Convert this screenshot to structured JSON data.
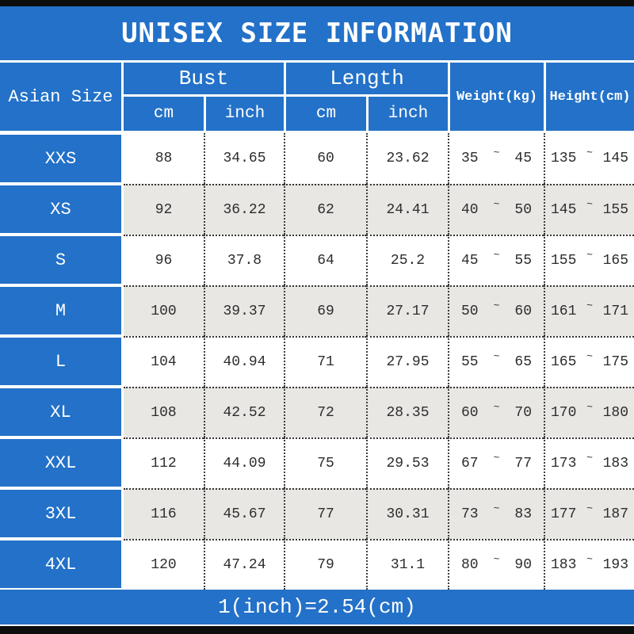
{
  "title": "UNISEX SIZE INFORMATION",
  "header": {
    "size_column": "Asian Size",
    "bust": "Bust",
    "length": "Length",
    "cm": "cm",
    "inch": "inch",
    "weight": "Weight(kg)",
    "height": "Height(cm)",
    "tilde": "~"
  },
  "rows": [
    {
      "size": "XXS",
      "bust_cm": "88",
      "bust_inch": "34.65",
      "length_cm": "60",
      "length_inch": "23.62",
      "weight_min": "35",
      "weight_max": "45",
      "height_min": "135",
      "height_max": "145"
    },
    {
      "size": "XS",
      "bust_cm": "92",
      "bust_inch": "36.22",
      "length_cm": "62",
      "length_inch": "24.41",
      "weight_min": "40",
      "weight_max": "50",
      "height_min": "145",
      "height_max": "155"
    },
    {
      "size": "S",
      "bust_cm": "96",
      "bust_inch": "37.8",
      "length_cm": "64",
      "length_inch": "25.2",
      "weight_min": "45",
      "weight_max": "55",
      "height_min": "155",
      "height_max": "165"
    },
    {
      "size": "M",
      "bust_cm": "100",
      "bust_inch": "39.37",
      "length_cm": "69",
      "length_inch": "27.17",
      "weight_min": "50",
      "weight_max": "60",
      "height_min": "161",
      "height_max": "171"
    },
    {
      "size": "L",
      "bust_cm": "104",
      "bust_inch": "40.94",
      "length_cm": "71",
      "length_inch": "27.95",
      "weight_min": "55",
      "weight_max": "65",
      "height_min": "165",
      "height_max": "175"
    },
    {
      "size": "XL",
      "bust_cm": "108",
      "bust_inch": "42.52",
      "length_cm": "72",
      "length_inch": "28.35",
      "weight_min": "60",
      "weight_max": "70",
      "height_min": "170",
      "height_max": "180"
    },
    {
      "size": "XXL",
      "bust_cm": "112",
      "bust_inch": "44.09",
      "length_cm": "75",
      "length_inch": "29.53",
      "weight_min": "67",
      "weight_max": "77",
      "height_min": "173",
      "height_max": "183"
    },
    {
      "size": "3XL",
      "bust_cm": "116",
      "bust_inch": "45.67",
      "length_cm": "77",
      "length_inch": "30.31",
      "weight_min": "73",
      "weight_max": "83",
      "height_min": "177",
      "height_max": "187"
    },
    {
      "size": "4XL",
      "bust_cm": "120",
      "bust_inch": "47.24",
      "length_cm": "79",
      "length_inch": "31.1",
      "weight_min": "80",
      "weight_max": "90",
      "height_min": "183",
      "height_max": "193"
    }
  ],
  "footer": {
    "note": "1(inch)=2.54(cm)"
  },
  "colors": {
    "blue": "#2371C8",
    "alt_row": "#E9E7E4",
    "black_bar": "#0D0D0D",
    "text": "#2D2D2D"
  }
}
